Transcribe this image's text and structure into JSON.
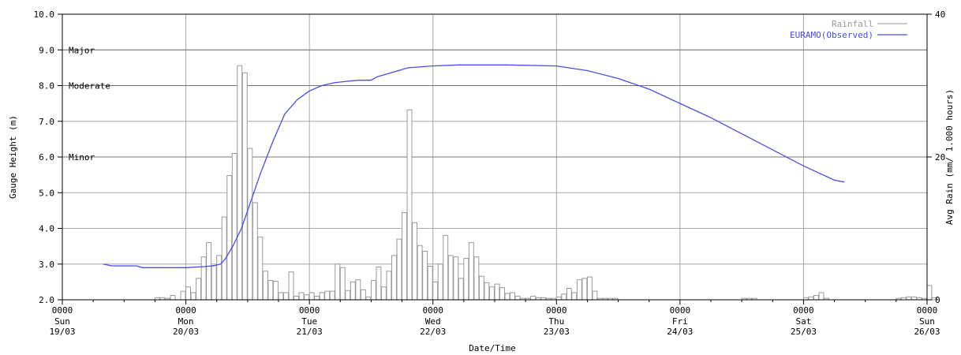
{
  "chart_data": {
    "type": "line",
    "xlabel": "Date/Time",
    "ylabel_left": "Gauge Height (m)",
    "ylabel_right": "Avg Rain (mm/ 1.000 hours)",
    "ylim_left": [
      2.0,
      10.0
    ],
    "ylim_right": [
      0,
      40
    ],
    "yticks_left": [
      "2.0",
      "3.0",
      "4.0",
      "5.0",
      "6.0",
      "7.0",
      "8.0",
      "9.0",
      "10.0"
    ],
    "yticks_right": [
      "0",
      "20",
      "40"
    ],
    "xlim_days": [
      19,
      26
    ],
    "grid": true,
    "legend_placement": "top-right",
    "x_ticks": [
      {
        "day": 19,
        "time": "0000",
        "dow": "Sun",
        "date": "19/03"
      },
      {
        "day": 20,
        "time": "0000",
        "dow": "Mon",
        "date": "20/03"
      },
      {
        "day": 21,
        "time": "0000",
        "dow": "Tue",
        "date": "21/03"
      },
      {
        "day": 22,
        "time": "0000",
        "dow": "Wed",
        "date": "22/03"
      },
      {
        "day": 23,
        "time": "0000",
        "dow": "Thu",
        "date": "23/03"
      },
      {
        "day": 24,
        "time": "0000",
        "dow": "Fri",
        "date": "24/03"
      },
      {
        "day": 25,
        "time": "0000",
        "dow": "Sat",
        "date": "25/03"
      },
      {
        "day": 26,
        "time": "0000",
        "dow": "Sun",
        "date": "26/03"
      }
    ],
    "flood_levels": [
      {
        "label": "Major",
        "value": 9.0
      },
      {
        "label": "Moderate",
        "value": 8.0
      },
      {
        "label": "Minor",
        "value": 6.0
      }
    ],
    "series": [
      {
        "name": "Rainfall",
        "type": "bar",
        "color": "#999999",
        "bin_hours": 1,
        "axis": "right",
        "start": 19.75,
        "values": [
          0.3,
          0.3,
          0.2,
          0.6,
          0,
          1.2,
          1.8,
          1.0,
          3.0,
          6.0,
          8.0,
          4.8,
          6.2,
          11.6,
          17.4,
          20.5,
          32.8,
          31.8,
          21.2,
          13.6,
          8.8,
          4.0,
          2.7,
          2.6,
          1.0,
          1.0,
          3.9,
          0.5,
          1.0,
          0.7,
          1.0,
          0.5,
          1.0,
          1.2,
          1.2,
          5.0,
          4.5,
          1.3,
          2.5,
          2.8,
          1.4,
          0.4,
          2.7,
          4.6,
          1.8,
          4.0,
          6.2,
          8.5,
          12.2,
          26.6,
          10.8,
          7.6,
          6.8,
          4.7,
          2.5,
          5.0,
          9.0,
          6.2,
          6.0,
          3.0,
          5.8,
          8.0,
          6.0,
          3.3,
          2.4,
          1.8,
          2.2,
          1.7,
          0.9,
          1.0,
          0.5,
          0.2,
          0.2,
          0.5,
          0.3,
          0.3,
          0.2,
          0.2,
          0.4,
          0.8,
          1.6,
          1.0,
          2.8,
          3.0,
          3.2,
          1.2,
          0.2,
          0.2,
          0.2,
          0.2,
          0,
          0,
          0,
          0,
          0,
          0,
          0,
          0,
          0,
          0,
          0,
          0,
          0,
          0,
          0,
          0,
          0,
          0,
          0,
          0,
          0,
          0,
          0,
          0,
          0.2,
          0.2,
          0.2,
          0,
          0,
          0,
          0,
          0,
          0,
          0,
          0,
          0,
          0.3,
          0.4,
          0.6,
          1.0,
          0.2,
          0,
          0,
          0,
          0,
          0,
          0,
          0,
          0,
          0,
          0,
          0,
          0,
          0,
          0.2,
          0.3,
          0.4,
          0.4,
          0.3,
          0.2,
          2.0,
          0.3,
          0,
          0,
          0,
          0,
          0,
          0,
          0,
          0,
          0,
          0,
          0,
          0,
          0,
          0,
          0,
          0,
          0,
          0,
          0,
          0.2,
          0.3,
          0.4,
          0.3
        ]
      },
      {
        "name": "EURAMO(Observed)",
        "type": "line",
        "color": "#4b4bf0",
        "axis": "left",
        "x": [
          19.33,
          19.4,
          19.6,
          19.65,
          20.0,
          20.15,
          20.22,
          20.28,
          20.32,
          20.38,
          20.45,
          20.5,
          20.6,
          20.7,
          20.8,
          20.9,
          21.0,
          21.1,
          21.2,
          21.3,
          21.4,
          21.5,
          21.55,
          21.65,
          21.8,
          22.0,
          22.2,
          22.6,
          23.0,
          23.25,
          23.5,
          23.75,
          24.0,
          24.25,
          24.5,
          24.75,
          25.0,
          25.25,
          25.33
        ],
        "y": [
          3.0,
          2.95,
          2.95,
          2.9,
          2.9,
          2.93,
          2.95,
          3.0,
          3.15,
          3.5,
          4.0,
          4.5,
          5.5,
          6.4,
          7.2,
          7.6,
          7.85,
          8.0,
          8.08,
          8.12,
          8.15,
          8.15,
          8.25,
          8.35,
          8.5,
          8.55,
          8.58,
          8.58,
          8.55,
          8.42,
          8.2,
          7.9,
          7.5,
          7.1,
          6.65,
          6.2,
          5.75,
          5.35,
          5.3
        ]
      }
    ]
  }
}
